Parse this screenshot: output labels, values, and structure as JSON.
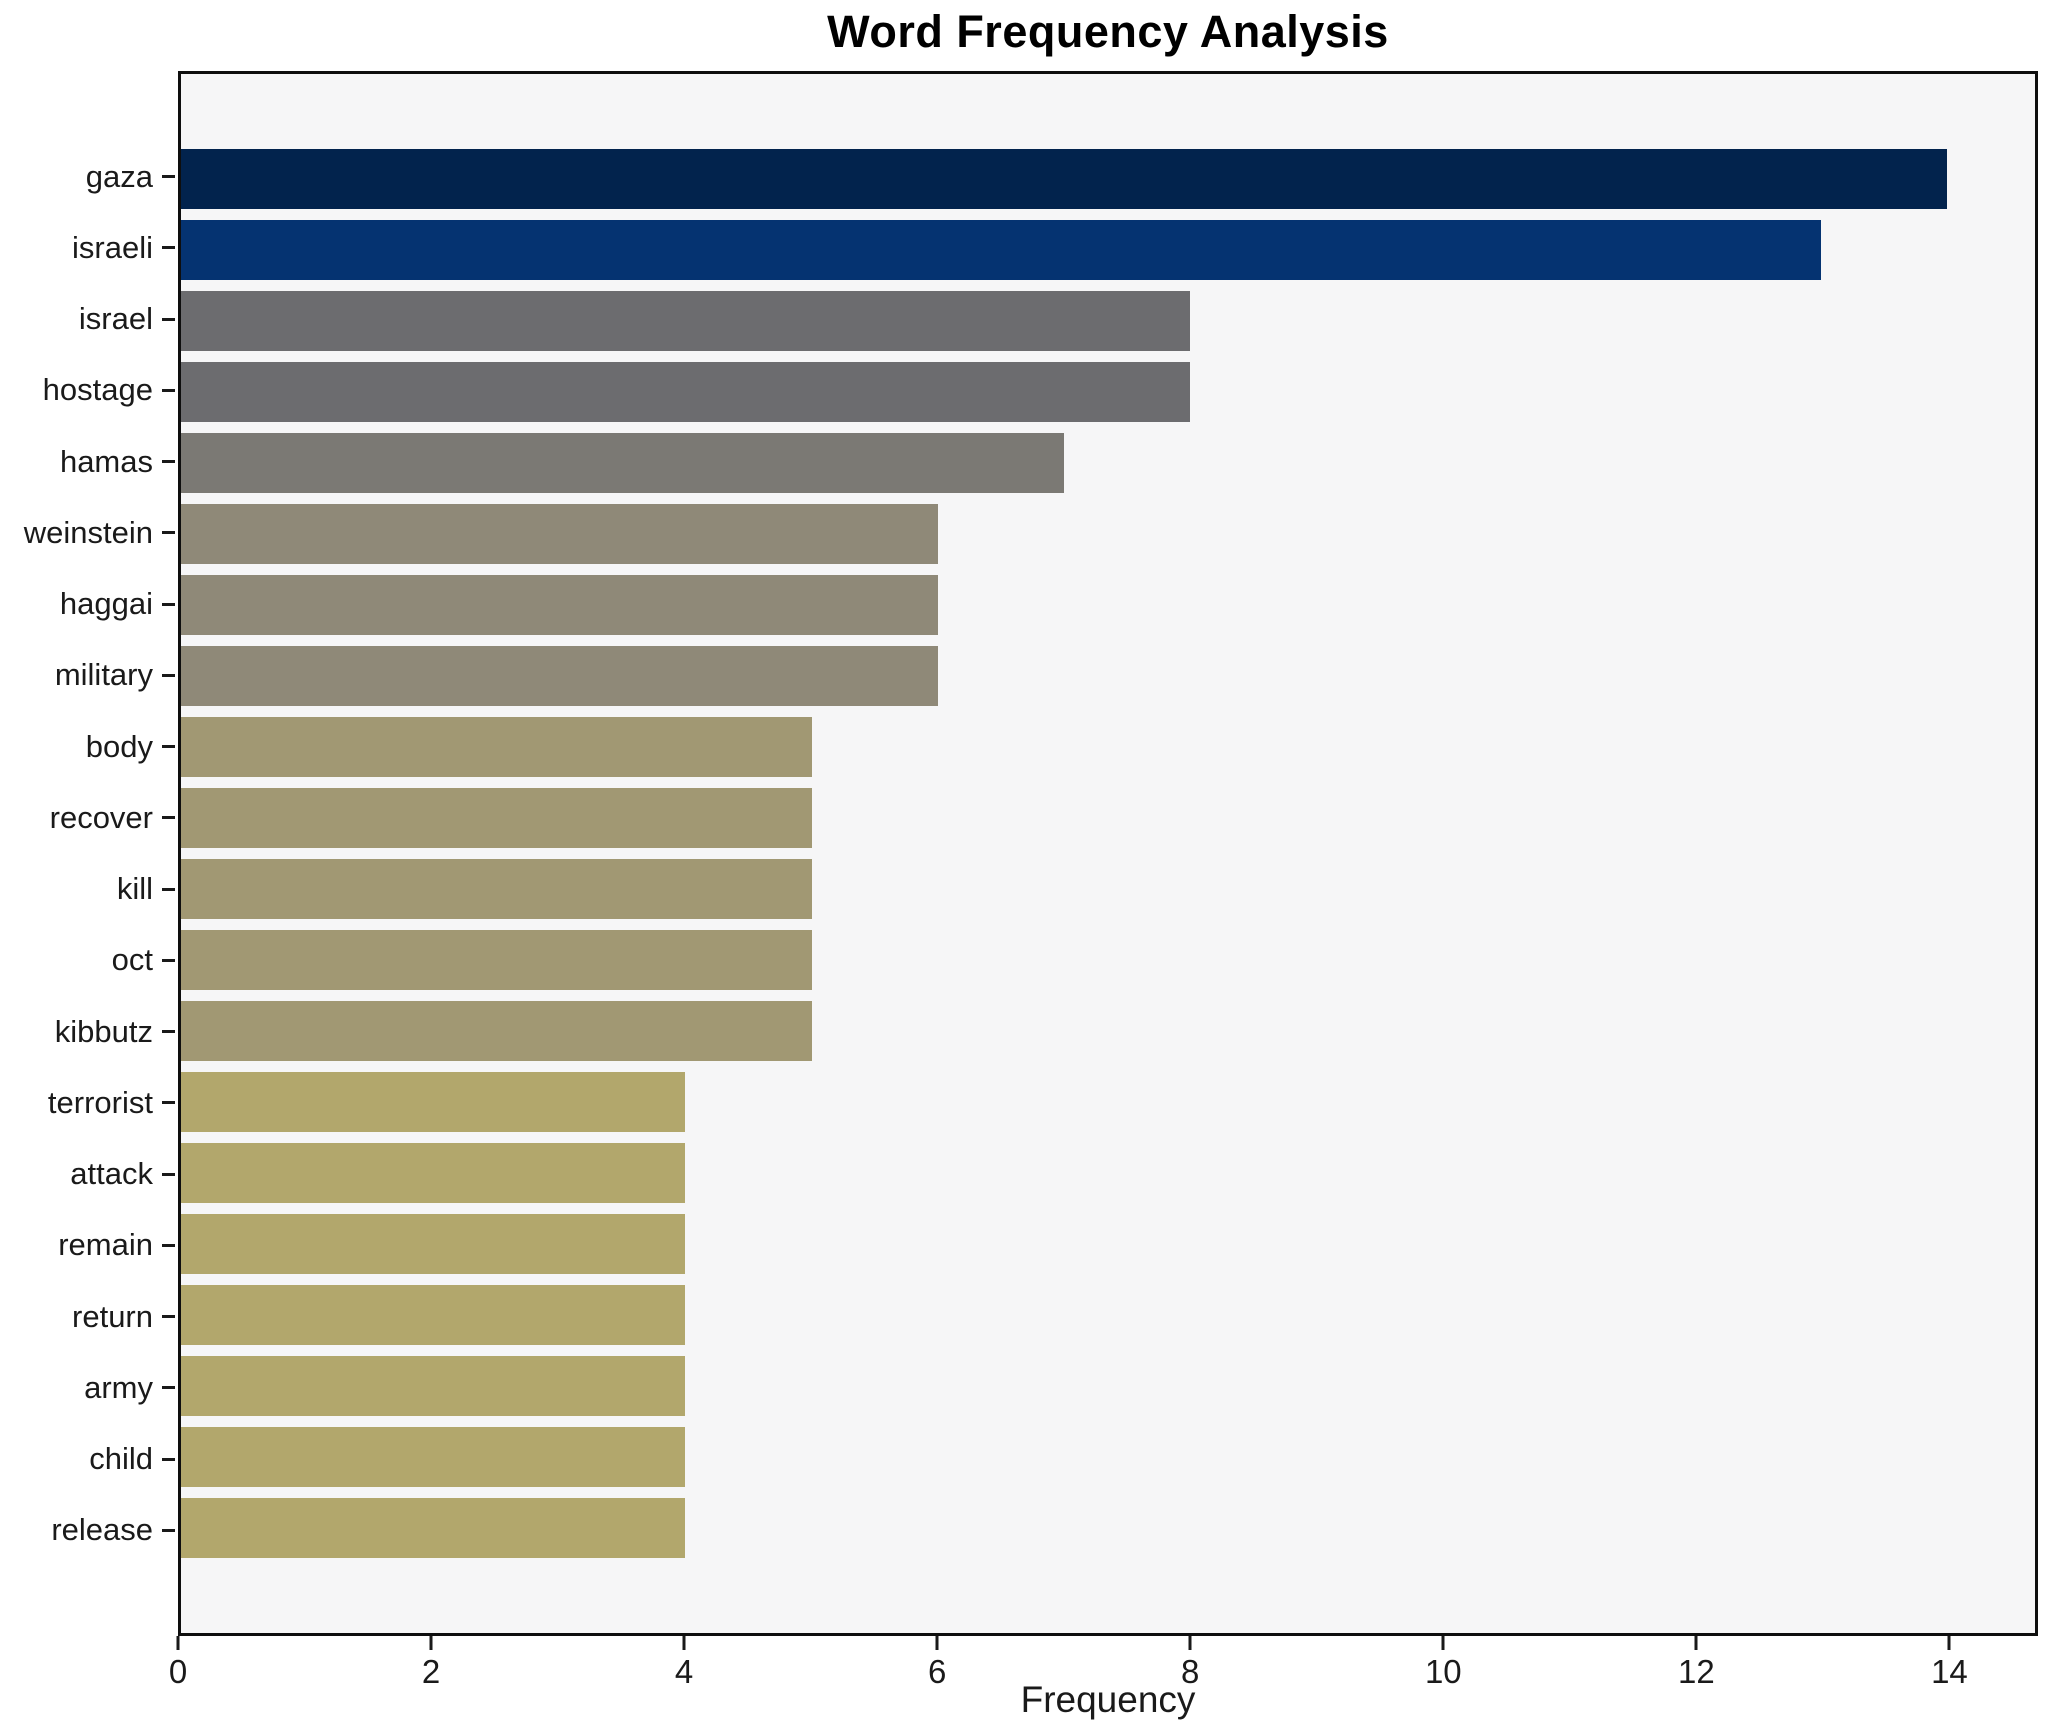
{
  "chart_data": {
    "type": "bar",
    "orientation": "horizontal",
    "title": "Word Frequency Analysis",
    "xlabel": "Frequency",
    "ylabel": "",
    "categories": [
      "gaza",
      "israeli",
      "israel",
      "hostage",
      "hamas",
      "weinstein",
      "haggai",
      "military",
      "body",
      "recover",
      "kill",
      "oct",
      "kibbutz",
      "terrorist",
      "attack",
      "remain",
      "return",
      "army",
      "child",
      "release"
    ],
    "values": [
      14,
      13,
      8,
      8,
      7,
      6,
      6,
      6,
      5,
      5,
      5,
      5,
      5,
      4,
      4,
      4,
      4,
      4,
      4,
      4
    ],
    "bar_colors": [
      "#02234d",
      "#053371",
      "#6c6c6f",
      "#6c6c6f",
      "#7b7974",
      "#8f8978",
      "#8f8978",
      "#8f8978",
      "#a19873",
      "#a19873",
      "#a19873",
      "#a19873",
      "#a19873",
      "#b2a76c",
      "#b2a76c",
      "#b2a76c",
      "#b2a76c",
      "#b2a76c",
      "#b2a76c",
      "#b2a76c"
    ],
    "xlim": [
      0,
      14.7
    ],
    "xticks": [
      0,
      2,
      4,
      6,
      8,
      10,
      12,
      14
    ],
    "grid": false,
    "legend_position": "none",
    "plot_background": "#f6f6f7",
    "figure_background": "#ffffff",
    "axis_color": "#0e0e0e",
    "text_color": "#1a1a1a"
  }
}
